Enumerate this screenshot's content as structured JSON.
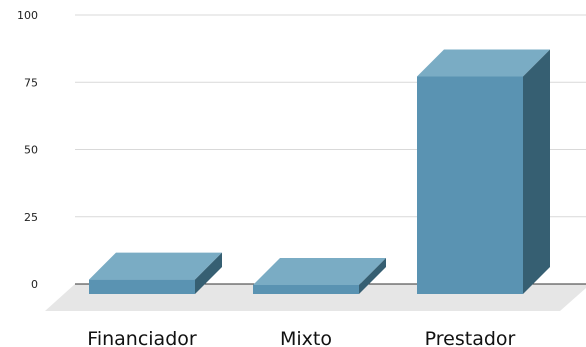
{
  "chart_data": {
    "type": "bar",
    "categories": [
      "Financiador",
      "Mixto",
      "Prestador"
    ],
    "values": [
      3.5,
      1.5,
      79
    ],
    "ylim": [
      0,
      100
    ],
    "yticks": [
      0,
      25,
      50,
      75,
      100
    ],
    "grid": true,
    "legend": "none",
    "title": "",
    "xlabel": "",
    "ylabel": "",
    "style": "3d"
  },
  "colors": {
    "bar_front": "#5a93b2",
    "bar_top": "#7aacc4",
    "bar_side": "#365f72",
    "floor": "#e6e6e6",
    "gridline": "#d9d9d9",
    "zero_line": "#333333"
  }
}
